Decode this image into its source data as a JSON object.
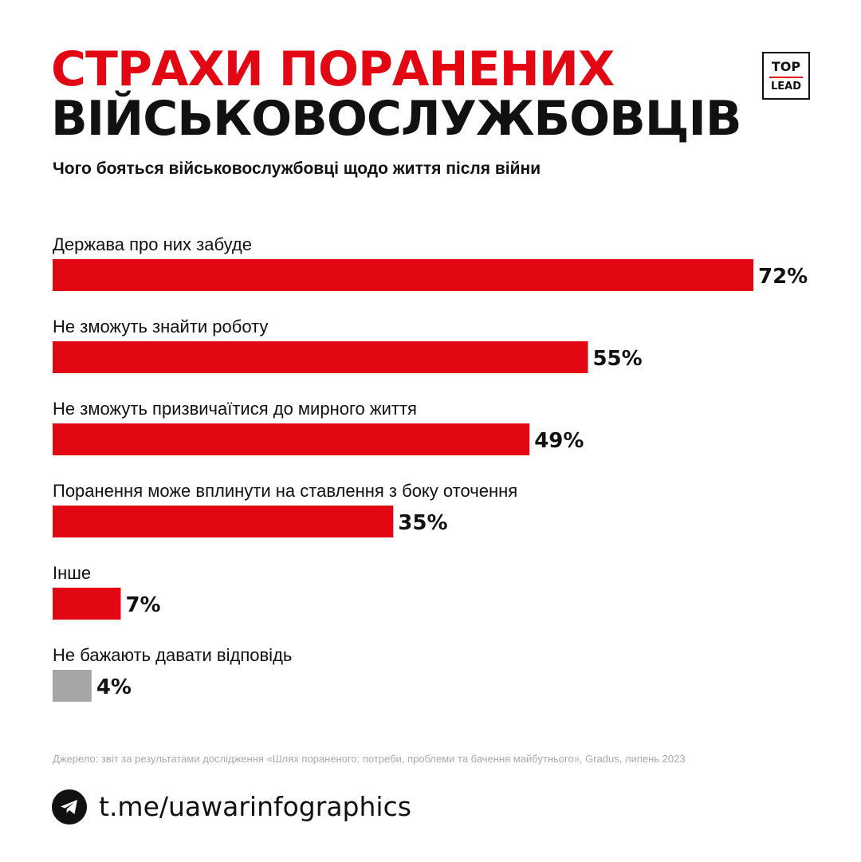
{
  "header": {
    "title_line1": "СТРАХИ ПОРАНЕНИХ",
    "title_line2": "ВІЙСЬКОВОСЛУЖБОВЦІВ",
    "logo_top": "TOP",
    "logo_bottom": "LEAD"
  },
  "chart_data": {
    "type": "bar",
    "orientation": "horizontal",
    "title": "Чого бояться військовослужбовці щодо життя після війни",
    "xlim": [
      0,
      72
    ],
    "categories": [
      "Держава про них забуде",
      "Не зможуть знайти роботу",
      "Не зможуть призвичаїтися до мирного життя",
      "Поранення може вплинути на ставлення з боку оточення",
      "Інше",
      "Не бажають давати відповідь"
    ],
    "values": [
      72,
      55,
      49,
      35,
      7,
      4
    ],
    "value_labels": [
      "72%",
      "55%",
      "49%",
      "35%",
      "7%",
      "4%"
    ],
    "colors": [
      "#e30613",
      "#e30613",
      "#e30613",
      "#e30613",
      "#e30613",
      "#a6a6a6"
    ]
  },
  "footer": {
    "source": "Джерело: звіт за результатами дослідження «Шлях пораненого: потреби, проблеми та бачення майбутнього», Gradus, липень 2023",
    "link": "t.me/uawarinfographics",
    "link_icon": "telegram-icon"
  }
}
